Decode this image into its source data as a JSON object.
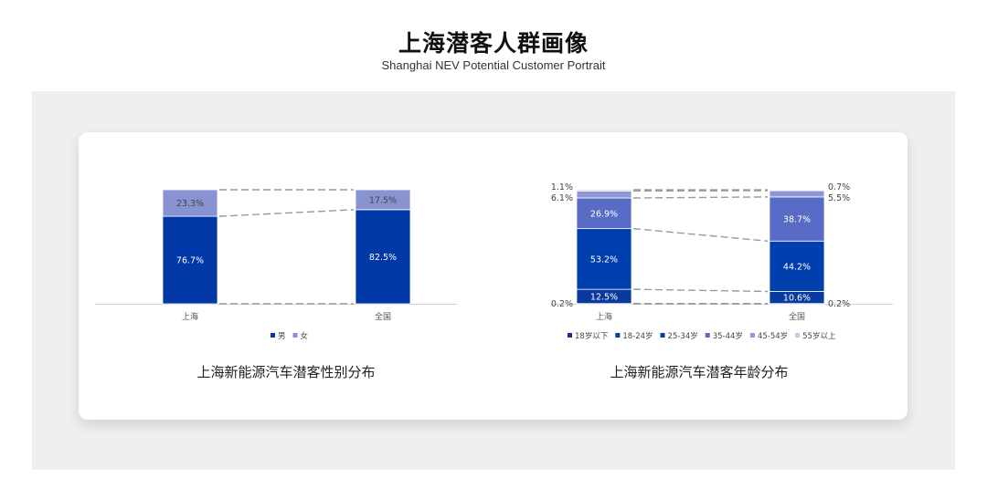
{
  "header": {
    "title": "上海潜客人群画像",
    "subtitle": "Shanghai NEV Potential Customer Portrait"
  },
  "chart_data": [
    {
      "type": "bar",
      "stacked": true,
      "caption": "上海新能源汽车潜客性别分布",
      "categories": [
        "上海",
        "全国"
      ],
      "series": [
        {
          "name": "男",
          "values": [
            76.7,
            82.5
          ],
          "color": "#0038a8",
          "labels": [
            "76.7%",
            "82.5%"
          ]
        },
        {
          "name": "女",
          "values": [
            23.3,
            17.5
          ],
          "color": "#8a93d2",
          "labels": [
            "23.3%",
            "17.5%"
          ]
        }
      ],
      "ylim": [
        0,
        100
      ],
      "legend": "bottom",
      "connector_lines": "dashed"
    },
    {
      "type": "bar",
      "stacked": true,
      "caption": "上海新能源汽车潜客年龄分布",
      "categories": [
        "上海",
        "全国"
      ],
      "series": [
        {
          "name": "18岁以下",
          "values": [
            0.2,
            0.2
          ],
          "color": "#1b2e86",
          "labels": [
            "0.2%",
            "0.2%"
          ]
        },
        {
          "name": "18-24岁",
          "values": [
            12.5,
            10.6
          ],
          "color": "#0a3aa0",
          "labels": [
            "12.5%",
            "10.6%"
          ]
        },
        {
          "name": "25-34岁",
          "values": [
            53.2,
            44.2
          ],
          "color": "#0040ae",
          "labels": [
            "53.2%",
            "44.2%"
          ]
        },
        {
          "name": "35-44岁",
          "values": [
            26.9,
            38.7
          ],
          "color": "#5a6bc6",
          "labels": [
            "26.9%",
            "38.7%"
          ]
        },
        {
          "name": "45-54岁",
          "values": [
            6.1,
            5.5
          ],
          "color": "#8f98d6",
          "labels": [
            "6.1%",
            "5.5%"
          ]
        },
        {
          "name": "55岁以上",
          "values": [
            1.1,
            0.7
          ],
          "color": "#c6cbe9",
          "labels": [
            "1.1%",
            "0.7%"
          ]
        }
      ],
      "ylim": [
        0,
        100
      ],
      "legend": "bottom",
      "connector_lines": "dashed"
    }
  ]
}
